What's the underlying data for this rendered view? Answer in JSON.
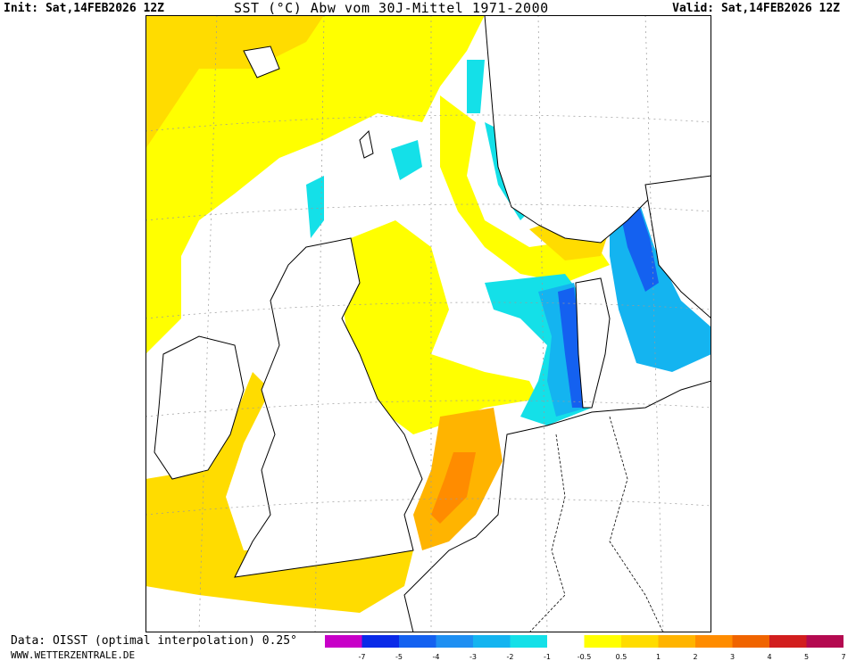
{
  "header": {
    "init": "Init: Sat,14FEB2026 12Z",
    "title": "SST (°C) Abw vom 30J-Mittel 1971-2000",
    "valid": "Valid: Sat,14FEB2026 12Z"
  },
  "footer": {
    "source": "Data: OISST (optimal interpolation) 0.25°",
    "site": "WWW.WETTERZENTRALE.DE"
  },
  "legend": {
    "colors": [
      "#c800c8",
      "#0a2ae8",
      "#1461f0",
      "#1e8ff2",
      "#14b4f0",
      "#14e0e8",
      "#ffffff",
      "#ffff00",
      "#ffdc00",
      "#ffb400",
      "#ff8c00",
      "#f06400",
      "#d21e1e",
      "#b40a50"
    ],
    "ticks": [
      "-7",
      "-5",
      "-4",
      "-3",
      "-2",
      "-1",
      "-0.5",
      "0.5",
      "1",
      "2",
      "3",
      "4",
      "5",
      "7"
    ]
  },
  "map": {
    "region": "North Sea / British Isles / Scandinavia",
    "colors": {
      "land": "#ffffff",
      "coast": "#000000",
      "grid": "#9a9a9a",
      "border": "#000000"
    }
  }
}
